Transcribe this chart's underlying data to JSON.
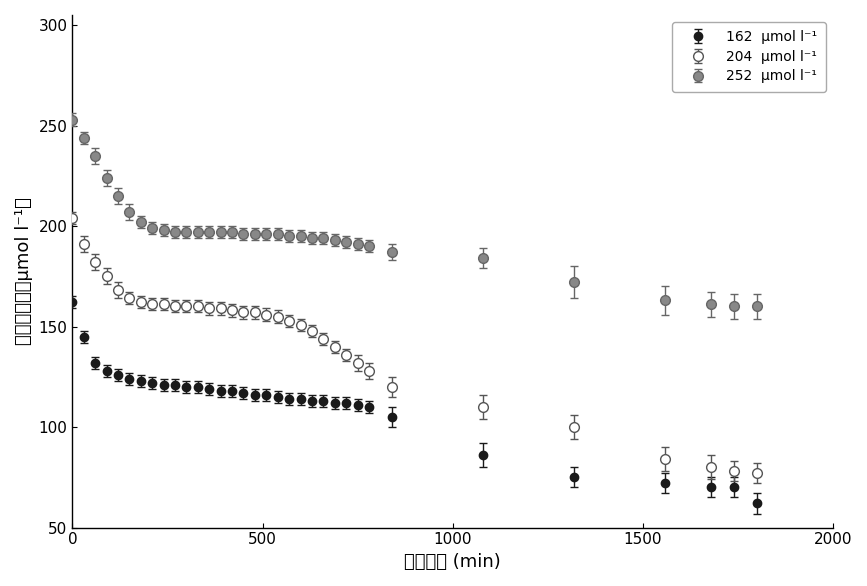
{
  "series": [
    {
      "label": "162  μmol l⁻¹",
      "color": "#1a1a1a",
      "marker_facecolor": "#1a1a1a",
      "marker": "o",
      "markersize": 6,
      "x": [
        0,
        30,
        60,
        90,
        120,
        150,
        180,
        210,
        240,
        270,
        300,
        330,
        360,
        390,
        420,
        450,
        480,
        510,
        540,
        570,
        600,
        630,
        660,
        690,
        720,
        750,
        780,
        840,
        1080,
        1320,
        1560,
        1680,
        1740,
        1800
      ],
      "y": [
        162,
        145,
        132,
        128,
        126,
        124,
        123,
        122,
        121,
        121,
        120,
        120,
        119,
        118,
        118,
        117,
        116,
        116,
        115,
        114,
        114,
        113,
        113,
        112,
        112,
        111,
        110,
        105,
        86,
        75,
        72,
        70,
        70,
        62
      ],
      "yerr": [
        3,
        3,
        3,
        3,
        3,
        3,
        3,
        3,
        3,
        3,
        3,
        3,
        3,
        3,
        3,
        3,
        3,
        3,
        3,
        3,
        3,
        3,
        3,
        3,
        3,
        3,
        3,
        5,
        6,
        5,
        5,
        5,
        5,
        5
      ]
    },
    {
      "label": "204  μmol l⁻¹",
      "color": "#555555",
      "marker_facecolor": "#ffffff",
      "marker": "o",
      "markersize": 7,
      "x": [
        0,
        30,
        60,
        90,
        120,
        150,
        180,
        210,
        240,
        270,
        300,
        330,
        360,
        390,
        420,
        450,
        480,
        510,
        540,
        570,
        600,
        630,
        660,
        690,
        720,
        750,
        780,
        840,
        1080,
        1320,
        1560,
        1680,
        1740,
        1800
      ],
      "y": [
        204,
        191,
        182,
        175,
        168,
        164,
        162,
        161,
        161,
        160,
        160,
        160,
        159,
        159,
        158,
        157,
        157,
        156,
        155,
        153,
        151,
        148,
        144,
        140,
        136,
        132,
        128,
        120,
        110,
        100,
        84,
        80,
        78,
        77
      ],
      "yerr": [
        3,
        4,
        4,
        4,
        4,
        3,
        3,
        3,
        3,
        3,
        3,
        3,
        3,
        3,
        3,
        3,
        3,
        3,
        3,
        3,
        3,
        3,
        3,
        3,
        3,
        4,
        4,
        5,
        6,
        6,
        6,
        6,
        5,
        5
      ]
    },
    {
      "label": "252  μmol l⁻¹",
      "color": "#666666",
      "marker_facecolor": "#888888",
      "marker": "o",
      "markersize": 7,
      "x": [
        0,
        30,
        60,
        90,
        120,
        150,
        180,
        210,
        240,
        270,
        300,
        330,
        360,
        390,
        420,
        450,
        480,
        510,
        540,
        570,
        600,
        630,
        660,
        690,
        720,
        750,
        780,
        840,
        1080,
        1320,
        1560,
        1680,
        1740,
        1800
      ],
      "y": [
        253,
        244,
        235,
        224,
        215,
        207,
        202,
        199,
        198,
        197,
        197,
        197,
        197,
        197,
        197,
        196,
        196,
        196,
        196,
        195,
        195,
        194,
        194,
        193,
        192,
        191,
        190,
        187,
        184,
        172,
        163,
        161,
        160,
        160
      ],
      "yerr": [
        3,
        3,
        4,
        4,
        4,
        4,
        3,
        3,
        3,
        3,
        3,
        3,
        3,
        3,
        3,
        3,
        3,
        3,
        3,
        3,
        3,
        3,
        3,
        3,
        3,
        3,
        3,
        4,
        5,
        8,
        7,
        6,
        6,
        6
      ]
    }
  ],
  "xlabel": "耗竭时间 (min)",
  "ylabel": "耗竭液浓度（μmol l⁻¹）",
  "xlim": [
    0,
    2000
  ],
  "ylim": [
    50,
    305
  ],
  "xticks": [
    0,
    500,
    1000,
    1500,
    2000
  ],
  "yticks": [
    50,
    100,
    150,
    200,
    250,
    300
  ],
  "background_color": "#ffffff",
  "figsize": [
    8.67,
    5.86
  ],
  "dpi": 100,
  "legend_loc": "upper right",
  "label_fontsize": 13,
  "tick_fontsize": 11,
  "legend_fontsize": 10
}
